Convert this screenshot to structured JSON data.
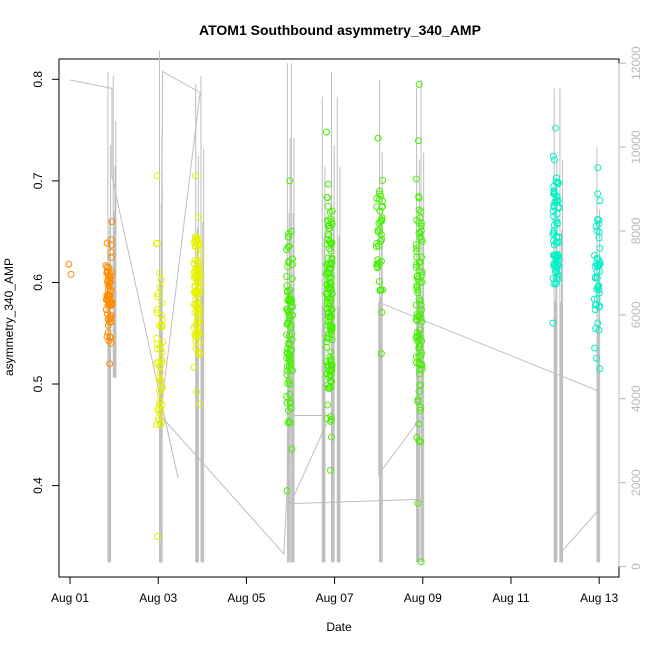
{
  "chart_data": {
    "type": "scatter",
    "title": "ATOM1 Southbound asymmetry_340_AMP",
    "xlabel": "Date",
    "ylabel": "asymmetry_340_AMP",
    "x_ticks": [
      "Aug 01",
      "Aug 03",
      "Aug 05",
      "Aug 07",
      "Aug 09",
      "Aug 11",
      "Aug 13"
    ],
    "x_tick_days": [
      1,
      3,
      5,
      7,
      9,
      11,
      13
    ],
    "xlim_days": [
      0.75,
      13.45
    ],
    "ylim": [
      0.31,
      0.82
    ],
    "y_ticks": [
      0.4,
      0.5,
      0.6,
      0.7,
      0.8
    ],
    "y2_ticks": [
      0,
      2000,
      4000,
      6000,
      8000,
      10000,
      12000
    ],
    "y2lim": [
      -250,
      12100
    ],
    "grid": false,
    "legend": "none",
    "point_colors": {
      "orange": "#ff8c00",
      "yellow": "#e6f000",
      "green": "#46f000",
      "cyan": "#00f0c8"
    },
    "line_color": "#bebebe",
    "clusters": [
      {
        "day": 1.0,
        "color": "orange",
        "count": 2,
        "min": 0.608,
        "max": 0.618
      },
      {
        "day": 1.88,
        "color": "orange",
        "count": 70,
        "min": 0.52,
        "max": 0.66
      },
      {
        "day": 3.03,
        "color": "yellow",
        "count": 50,
        "min": 0.35,
        "max": 0.705
      },
      {
        "day": 3.88,
        "color": "yellow",
        "count": 95,
        "min": 0.48,
        "max": 0.705
      },
      {
        "day": 5.98,
        "color": "green",
        "count": 85,
        "min": 0.395,
        "max": 0.7
      },
      {
        "day": 6.88,
        "color": "green",
        "count": 140,
        "min": 0.415,
        "max": 0.748
      },
      {
        "day": 8.02,
        "color": "green",
        "count": 40,
        "min": 0.53,
        "max": 0.742
      },
      {
        "day": 8.92,
        "color": "green",
        "count": 90,
        "min": 0.325,
        "max": 0.795
      },
      {
        "day": 12.02,
        "color": "cyan",
        "count": 75,
        "min": 0.56,
        "max": 0.752
      },
      {
        "day": 12.95,
        "color": "cyan",
        "count": 45,
        "min": 0.515,
        "max": 0.713
      }
    ],
    "secondary_series": {
      "name": "",
      "spikes": [
        {
          "day": 1.86,
          "low": 100,
          "high": 11800
        },
        {
          "day": 1.98,
          "low": 4500,
          "high": 11700
        },
        {
          "day": 3.03,
          "low": 100,
          "high": 12300
        },
        {
          "day": 3.85,
          "low": 100,
          "high": 11500
        },
        {
          "day": 3.97,
          "low": 100,
          "high": 11700
        },
        {
          "day": 5.93,
          "low": 100,
          "high": 12000
        },
        {
          "day": 6.02,
          "low": 100,
          "high": 12000
        },
        {
          "day": 6.72,
          "low": 100,
          "high": 11200
        },
        {
          "day": 6.93,
          "low": 100,
          "high": 11800
        },
        {
          "day": 7.06,
          "low": 100,
          "high": 11200
        },
        {
          "day": 8.02,
          "low": 100,
          "high": 11600
        },
        {
          "day": 8.86,
          "low": 100,
          "high": 11400
        },
        {
          "day": 8.96,
          "low": 100,
          "high": 11600
        },
        {
          "day": 11.98,
          "low": 100,
          "high": 11400
        },
        {
          "day": 12.11,
          "low": 100,
          "high": 11400
        },
        {
          "day": 12.95,
          "low": 100,
          "high": 10000
        }
      ],
      "path": [
        [
          1.0,
          11600
        ],
        [
          1.95,
          11400
        ],
        [
          1.95,
          9300
        ],
        [
          3.45,
          2100
        ],
        [
          3.05,
          4000
        ],
        [
          3.1,
          11800
        ],
        [
          3.95,
          11300
        ],
        [
          3.05,
          3600
        ],
        [
          5.85,
          300
        ],
        [
          6.0,
          3600
        ],
        [
          6.9,
          3600
        ],
        [
          6.0,
          1500
        ],
        [
          8.92,
          1600
        ],
        [
          8.92,
          3500
        ],
        [
          8.0,
          2200
        ],
        [
          8.0,
          6300
        ],
        [
          12.95,
          4200
        ],
        [
          12.95,
          1300
        ],
        [
          12.1,
          300
        ]
      ]
    }
  }
}
